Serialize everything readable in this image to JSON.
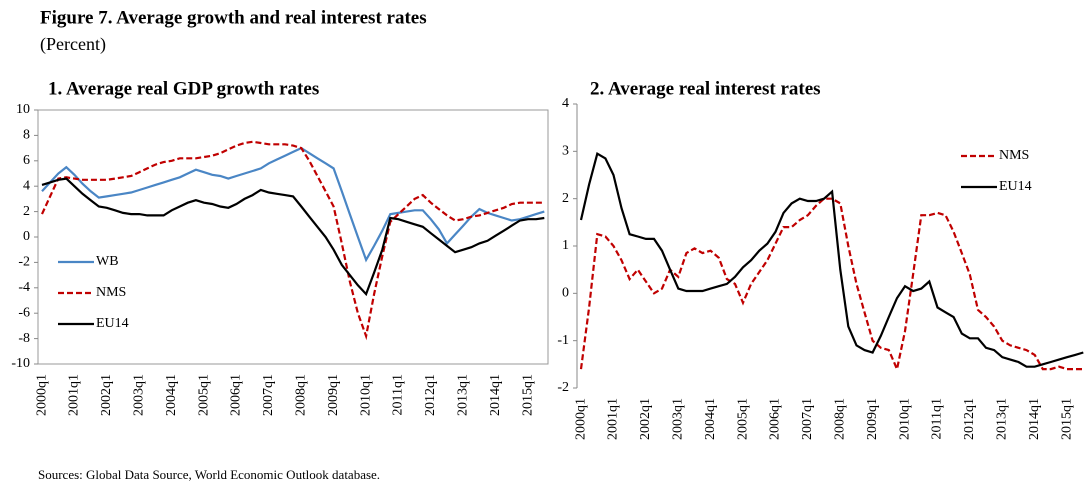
{
  "figure": {
    "title": "Figure 7. Average growth and real interest rates",
    "subtitle": "(Percent)",
    "source": "Sources: Global Data Source, World Economic Outlook database."
  },
  "chart_data": [
    {
      "type": "line",
      "title": "1. Average real GDP growth rates",
      "categories": [
        "2000q1",
        null,
        null,
        null,
        "2001q1",
        null,
        null,
        null,
        "2002q1",
        null,
        null,
        null,
        "2003q1",
        null,
        null,
        null,
        "2004q1",
        null,
        null,
        null,
        "2005q1",
        null,
        null,
        null,
        "2006q1",
        null,
        null,
        null,
        "2007q1",
        null,
        null,
        null,
        "2008q1",
        null,
        null,
        null,
        "2009q1",
        null,
        null,
        null,
        "2010q1",
        null,
        null,
        null,
        "2011q1",
        null,
        null,
        null,
        "2012q1",
        null,
        null,
        null,
        "2013q1",
        null,
        null,
        null,
        "2014q1",
        null,
        null,
        null,
        "2015q1",
        null,
        null
      ],
      "ylim": [
        -10,
        10
      ],
      "yticks": [
        -10,
        -8,
        -6,
        -4,
        -2,
        0,
        2,
        4,
        6,
        8,
        10
      ],
      "grid": false,
      "legend": "lower left",
      "series": [
        {
          "name": "WB",
          "color": "#4a86c5",
          "line_style": "solid",
          "values": [
            3.6,
            4.3,
            5.0,
            5.5,
            4.9,
            4.2,
            3.6,
            3.1,
            3.2,
            3.3,
            3.4,
            3.5,
            3.7,
            3.9,
            4.1,
            4.3,
            4.5,
            4.7,
            5.0,
            5.3,
            5.1,
            4.9,
            4.8,
            4.6,
            4.8,
            5.0,
            5.2,
            5.4,
            5.8,
            6.1,
            6.4,
            6.7,
            7.0,
            6.6,
            6.2,
            5.8,
            5.4,
            3.6,
            1.8,
            0,
            -1.8,
            -0.7,
            0.5,
            1.8,
            1.9,
            2.0,
            2.1,
            2.1,
            1.4,
            0.6,
            -0.5,
            0.2,
            0.9,
            1.6,
            2.2,
            1.9,
            1.7,
            1.5,
            1.3,
            1.4,
            1.6,
            1.8,
            2.0
          ]
        },
        {
          "name": "NMS",
          "color": "#c00000",
          "line_style": "dashed",
          "values": [
            1.8,
            3.2,
            4.6,
            4.7,
            4.6,
            4.5,
            4.5,
            4.5,
            4.5,
            4.6,
            4.7,
            4.8,
            5.1,
            5.4,
            5.7,
            5.9,
            6.0,
            6.2,
            6.2,
            6.2,
            6.3,
            6.4,
            6.6,
            6.9,
            7.2,
            7.4,
            7.5,
            7.4,
            7.3,
            7.3,
            7.3,
            7.2,
            7.0,
            6.0,
            4.8,
            3.6,
            2.4,
            -0.5,
            -3.5,
            -6.0,
            -7.8,
            -4.5,
            -1.5,
            1.2,
            1.8,
            2.4,
            3.0,
            3.3,
            2.7,
            2.2,
            1.7,
            1.3,
            1.4,
            1.6,
            1.7,
            1.9,
            2.1,
            2.3,
            2.6,
            2.7,
            2.7,
            2.7,
            2.7
          ]
        },
        {
          "name": "EU14",
          "color": "#000000",
          "line_style": "solid",
          "values": [
            4.1,
            4.3,
            4.5,
            4.6,
            4.0,
            3.4,
            2.9,
            2.4,
            2.3,
            2.1,
            1.9,
            1.8,
            1.8,
            1.7,
            1.7,
            1.7,
            2.1,
            2.4,
            2.7,
            2.9,
            2.7,
            2.6,
            2.4,
            2.3,
            2.6,
            3.0,
            3.3,
            3.7,
            3.5,
            3.4,
            3.3,
            3.2,
            2.4,
            1.6,
            0.8,
            0,
            -1.0,
            -2.2,
            -3.0,
            -3.8,
            -4.5,
            -2.8,
            -1.0,
            1.5,
            1.4,
            1.2,
            1.0,
            0.8,
            0.3,
            -0.2,
            -0.7,
            -1.2,
            -1.0,
            -0.8,
            -0.5,
            -0.3,
            0.1,
            0.5,
            0.9,
            1.3,
            1.4,
            1.4,
            1.5
          ]
        }
      ]
    },
    {
      "type": "line",
      "title": "2. Average real interest rates",
      "categories": [
        "2000q1",
        null,
        null,
        null,
        "2001q1",
        null,
        null,
        null,
        "2002q1",
        null,
        null,
        null,
        "2003q1",
        null,
        null,
        null,
        "2004q1",
        null,
        null,
        null,
        "2005q1",
        null,
        null,
        null,
        "2006q1",
        null,
        null,
        null,
        "2007q1",
        null,
        null,
        null,
        "2008q1",
        null,
        null,
        null,
        "2009q1",
        null,
        null,
        null,
        "2010q1",
        null,
        null,
        null,
        "2011q1",
        null,
        null,
        null,
        "2012q1",
        null,
        null,
        null,
        "2013q1",
        null,
        null,
        null,
        "2014q1",
        null,
        null,
        null,
        "2015q1",
        null,
        null
      ],
      "ylim": [
        -2,
        4
      ],
      "yticks": [
        -2,
        -1,
        0,
        1,
        2,
        3,
        4
      ],
      "grid": false,
      "legend": "upper right",
      "series": [
        {
          "name": "NMS",
          "color": "#c00000",
          "line_style": "dashed",
          "values": [
            -1.6,
            -0.3,
            1.25,
            1.2,
            1.0,
            0.7,
            0.3,
            0.5,
            0.25,
            0.0,
            0.1,
            0.5,
            0.35,
            0.85,
            0.95,
            0.85,
            0.9,
            0.75,
            0.3,
            0.2,
            -0.2,
            0.2,
            0.45,
            0.7,
            1.05,
            1.4,
            1.4,
            1.55,
            1.65,
            1.85,
            2.0,
            2.0,
            1.9,
            1.0,
            0.2,
            -0.4,
            -1.0,
            -1.15,
            -1.2,
            -1.6,
            -0.8,
            0.4,
            1.65,
            1.65,
            1.7,
            1.65,
            1.3,
            0.85,
            0.4,
            -0.35,
            -0.5,
            -0.7,
            -1.0,
            -1.1,
            -1.15,
            -1.2,
            -1.3,
            -1.6,
            -1.6,
            -1.55,
            -1.6,
            -1.6,
            -1.6
          ]
        },
        {
          "name": "EU14",
          "color": "#000000",
          "line_style": "solid",
          "values": [
            1.55,
            2.3,
            2.95,
            2.85,
            2.5,
            1.8,
            1.25,
            1.2,
            1.15,
            1.15,
            0.9,
            0.5,
            0.1,
            0.05,
            0.05,
            0.05,
            0.1,
            0.15,
            0.2,
            0.35,
            0.55,
            0.7,
            0.9,
            1.05,
            1.3,
            1.7,
            1.9,
            2.0,
            1.95,
            1.95,
            2.0,
            2.15,
            0.5,
            -0.7,
            -1.1,
            -1.2,
            -1.25,
            -0.9,
            -0.5,
            -0.1,
            0.15,
            0.05,
            0.1,
            0.25,
            -0.3,
            -0.4,
            -0.5,
            -0.85,
            -0.95,
            -0.95,
            -1.15,
            -1.2,
            -1.35,
            -1.4,
            -1.45,
            -1.55,
            -1.55,
            -1.5,
            -1.45,
            -1.4,
            -1.35,
            -1.3,
            -1.25
          ]
        }
      ]
    }
  ]
}
